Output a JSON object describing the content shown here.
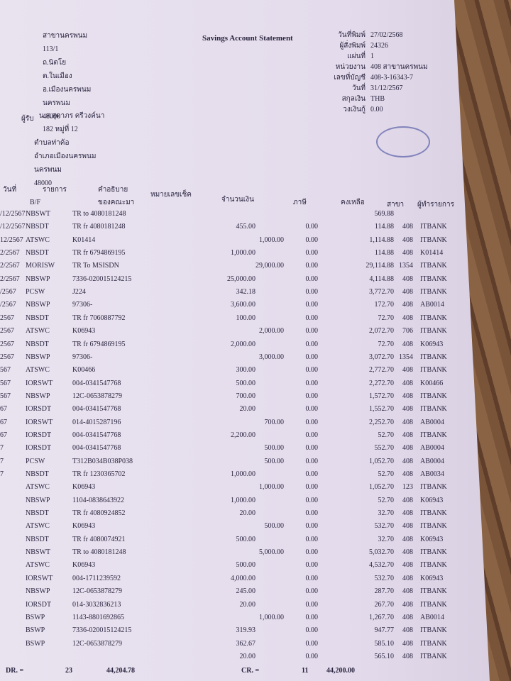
{
  "header": {
    "address": [
      "สาขานครพนม",
      "113/1",
      "ถ.นิตโย",
      "ต.ในเมือง",
      "อ.เมืองนครพนม",
      "นครพนม",
      "48000"
    ],
    "title": "Savings Account Statement",
    "meta": [
      {
        "label": "วันที่พิมพ์",
        "value": "27/02/2568"
      },
      {
        "label": "ผู้สั่งพิมพ์",
        "value": "24326"
      },
      {
        "label": "แผ่นที่",
        "value": "1"
      },
      {
        "label": "หน่วยงาน",
        "value": "408 สาขานครพนม"
      },
      {
        "label": "เลขที่บัญชี",
        "value": "408-3-16343-7"
      },
      {
        "label": "วันที่",
        "value": "31/12/2567"
      },
      {
        "label": "สกุลเงิน",
        "value": "THB"
      },
      {
        "label": "วงเงินกู้",
        "value": "0.00"
      }
    ],
    "recipient_label": "ผู้รับ",
    "recipient": [
      "น.ส.สุดาภร ครีวงค์นา",
      "182 หมู่ที่ 12",
      "ตำบลท่าค้อ",
      "อำเภอเมืองนครพนม",
      "นครพนม",
      "48000"
    ]
  },
  "columns": {
    "date": "วันที่",
    "code": "รายการ",
    "bf": "B/F",
    "desc": "คำอธิบาย",
    "desc2": "ของคณะมา",
    "cheque": "หมายเลขเช็ค",
    "amount": "จำนวนเงิน",
    "tax": "ภาษี",
    "balance": "คงเหลือ",
    "branch": "สาขา",
    "user": "ผู้ทำรายการ"
  },
  "rows": [
    {
      "date": "/12/2567",
      "code": "NBSWT",
      "desc": "TR to 4080181248",
      "balance": "569.88"
    },
    {
      "date": "/12/2567",
      "code": "NBSDT",
      "desc": "TR fr 4080181248",
      "debit": "455.00",
      "tax": "0.00",
      "balance": "114.88",
      "branch": "408",
      "user": "ITBANK"
    },
    {
      "date": "12/2567",
      "code": "ATSWC",
      "desc": "K01414",
      "credit": "1,000.00",
      "tax": "0.00",
      "balance": "1,114.88",
      "branch": "408",
      "user": "ITBANK"
    },
    {
      "date": "2/2567",
      "code": "NBSDT",
      "desc": "TR fr 6794869195",
      "debit": "1,000.00",
      "tax": "0.00",
      "balance": "114.88",
      "branch": "408",
      "user": "K01414"
    },
    {
      "date": "2/2567",
      "code": "MORISW",
      "desc": "TR To MSISDN",
      "credit": "29,000.00",
      "tax": "0.00",
      "balance": "29,114.88",
      "branch": "1354",
      "user": "ITBANK"
    },
    {
      "date": "2/2567",
      "code": "NBSWP",
      "desc": "7336-020015124215",
      "debit": "25,000.00",
      "tax": "0.00",
      "balance": "4,114.88",
      "branch": "408",
      "user": "ITBANK"
    },
    {
      "date": "/2567",
      "code": "PCSW",
      "desc": "J224",
      "debit": "342.18",
      "tax": "0.00",
      "balance": "3,772.70",
      "branch": "408",
      "user": "ITBANK"
    },
    {
      "date": "/2567",
      "code": "NBSWP",
      "desc": "97306-",
      "debit": "3,600.00",
      "tax": "0.00",
      "balance": "172.70",
      "branch": "408",
      "user": "AB0014"
    },
    {
      "date": "2567",
      "code": "NBSDT",
      "desc": "TR fr 7060887792",
      "debit": "100.00",
      "tax": "0.00",
      "balance": "72.70",
      "branch": "408",
      "user": "ITBANK"
    },
    {
      "date": "2567",
      "code": "ATSWC",
      "desc": "K06943",
      "credit": "2,000.00",
      "tax": "0.00",
      "balance": "2,072.70",
      "branch": "706",
      "user": "ITBANK"
    },
    {
      "date": "2567",
      "code": "NBSDT",
      "desc": "TR fr 6794869195",
      "debit": "2,000.00",
      "tax": "0.00",
      "balance": "72.70",
      "branch": "408",
      "user": "K06943"
    },
    {
      "date": "2567",
      "code": "NBSWP",
      "desc": "97306-",
      "credit": "3,000.00",
      "tax": "0.00",
      "balance": "3,072.70",
      "branch": "1354",
      "user": "ITBANK"
    },
    {
      "date": "567",
      "code": "ATSWC",
      "desc": "K00466",
      "debit": "300.00",
      "tax": "0.00",
      "balance": "2,772.70",
      "branch": "408",
      "user": "ITBANK"
    },
    {
      "date": "567",
      "code": "IORSWT",
      "desc": "004-0341547768",
      "debit": "500.00",
      "tax": "0.00",
      "balance": "2,272.70",
      "branch": "408",
      "user": "K00466"
    },
    {
      "date": "567",
      "code": "NBSWP",
      "desc": "12C-0653878279",
      "debit": "700.00",
      "tax": "0.00",
      "balance": "1,572.70",
      "branch": "408",
      "user": "ITBANK"
    },
    {
      "date": "67",
      "code": "IORSDT",
      "desc": "004-0341547768",
      "debit": "20.00",
      "tax": "0.00",
      "balance": "1,552.70",
      "branch": "408",
      "user": "ITBANK"
    },
    {
      "date": "67",
      "code": "IORSWT",
      "desc": "014-4015287196",
      "credit": "700.00",
      "tax": "0.00",
      "balance": "2,252.70",
      "branch": "408",
      "user": "AB0004"
    },
    {
      "date": "67",
      "code": "IORSDT",
      "desc": "004-0341547768",
      "debit": "2,200.00",
      "tax": "0.00",
      "balance": "52.70",
      "branch": "408",
      "user": "ITBANK"
    },
    {
      "date": "7",
      "code": "IORSDT",
      "desc": "004-0341547768",
      "credit": "500.00",
      "tax": "0.00",
      "balance": "552.70",
      "branch": "408",
      "user": "AB0004"
    },
    {
      "date": "7",
      "code": "PCSW",
      "desc": "T312B034B038P038",
      "credit": "500.00",
      "tax": "0.00",
      "balance": "1,052.70",
      "branch": "408",
      "user": "AB0004"
    },
    {
      "date": "7",
      "code": "NBSDT",
      "desc": "TR fr 1230365702",
      "debit": "1,000.00",
      "tax": "0.00",
      "balance": "52.70",
      "branch": "408",
      "user": "AB0034"
    },
    {
      "code": "ATSWC",
      "desc": "K06943",
      "credit": "1,000.00",
      "tax": "0.00",
      "balance": "1,052.70",
      "branch": "123",
      "user": "ITBANK"
    },
    {
      "code": "NBSWP",
      "desc": "1104-0838643922",
      "debit": "1,000.00",
      "tax": "0.00",
      "balance": "52.70",
      "branch": "408",
      "user": "K06943"
    },
    {
      "code": "NBSDT",
      "desc": "TR fr 4080924852",
      "debit": "20.00",
      "tax": "0.00",
      "balance": "32.70",
      "branch": "408",
      "user": "ITBANK"
    },
    {
      "code": "ATSWC",
      "desc": "K06943",
      "credit": "500.00",
      "tax": "0.00",
      "balance": "532.70",
      "branch": "408",
      "user": "ITBANK"
    },
    {
      "code": "NBSDT",
      "desc": "TR fr 4080074921",
      "debit": "500.00",
      "tax": "0.00",
      "balance": "32.70",
      "branch": "408",
      "user": "K06943"
    },
    {
      "code": "NBSWT",
      "desc": "TR to 4080181248",
      "credit": "5,000.00",
      "tax": "0.00",
      "balance": "5,032.70",
      "branch": "408",
      "user": "ITBANK"
    },
    {
      "code": "ATSWC",
      "desc": "K06943",
      "debit": "500.00",
      "tax": "0.00",
      "balance": "4,532.70",
      "branch": "408",
      "user": "ITBANK"
    },
    {
      "code": "IORSWT",
      "desc": "004-1711239592",
      "debit": "4,000.00",
      "tax": "0.00",
      "balance": "532.70",
      "branch": "408",
      "user": "K06943"
    },
    {
      "code": "NBSWP",
      "desc": "12C-0653878279",
      "debit": "245.00",
      "tax": "0.00",
      "balance": "287.70",
      "branch": "408",
      "user": "ITBANK"
    },
    {
      "code": "IORSDT",
      "desc": "014-3032836213",
      "debit": "20.00",
      "tax": "0.00",
      "balance": "267.70",
      "branch": "408",
      "user": "ITBANK"
    },
    {
      "code": "BSWP",
      "desc": "1143-8801692865",
      "credit": "1,000.00",
      "tax": "0.00",
      "balance": "1,267.70",
      "branch": "408",
      "user": "AB0014"
    },
    {
      "code": "BSWP",
      "desc": "7336-020015124215",
      "debit": "319.93",
      "tax": "0.00",
      "balance": "947.77",
      "branch": "408",
      "user": "ITBANK"
    },
    {
      "code": "BSWP",
      "desc": "12C-0653878279",
      "debit": "362.67",
      "tax": "0.00",
      "balance": "585.10",
      "branch": "408",
      "user": "ITBANK"
    },
    {
      "debit": "20.00",
      "tax": "0.00",
      "balance": "565.10",
      "branch": "408",
      "user": "ITBANK"
    }
  ],
  "footer": {
    "dr_label": "DR. =",
    "dr_count": "23",
    "dr_total": "44,204.78",
    "cr_label": "CR. =",
    "cr_count": "11",
    "cr_total": "44,200.00"
  }
}
